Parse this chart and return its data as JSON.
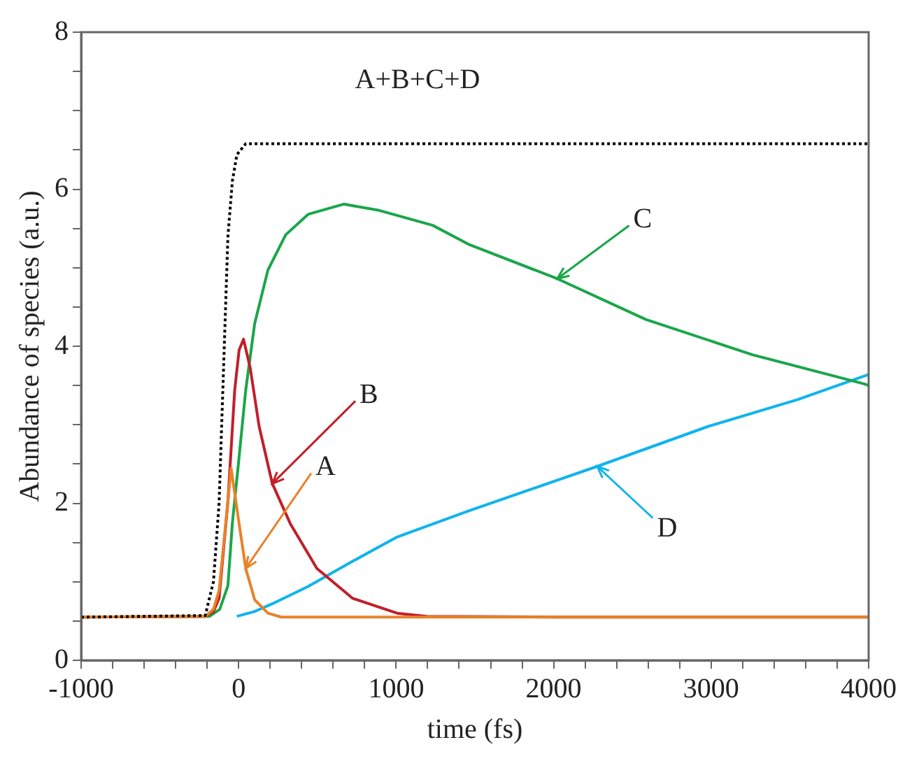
{
  "chart_data": {
    "type": "line",
    "xlabel": "time (fs)",
    "ylabel": "Abundance of species (a.u.)",
    "xlim": [
      -1000,
      4000
    ],
    "ylim": [
      0,
      8
    ],
    "xticks": [
      -1000,
      {
        "value": -800,
        "label": null
      },
      {
        "value": -600,
        "label": null
      },
      {
        "value": -400,
        "label": null
      },
      {
        "value": -200,
        "label": null
      },
      0,
      {
        "value": 200,
        "label": null
      },
      {
        "value": 400,
        "label": null
      },
      {
        "value": 600,
        "label": null
      },
      {
        "value": 800,
        "label": null
      },
      1000,
      {
        "value": 1200,
        "label": null
      },
      {
        "value": 1400,
        "label": null
      },
      {
        "value": 1600,
        "label": null
      },
      {
        "value": 1800,
        "label": null
      },
      2000,
      {
        "value": 2200,
        "label": null
      },
      {
        "value": 2400,
        "label": null
      },
      {
        "value": 2600,
        "label": null
      },
      {
        "value": 2800,
        "label": null
      },
      3000,
      {
        "value": 3200,
        "label": null
      },
      {
        "value": 3400,
        "label": null
      },
      {
        "value": 3600,
        "label": null
      },
      {
        "value": 3800,
        "label": null
      },
      4000
    ],
    "yticks": [
      0,
      {
        "value": 0.5,
        "label": null
      },
      {
        "value": 1,
        "label": null
      },
      {
        "value": 1.5,
        "label": null
      },
      2,
      {
        "value": 2.5,
        "label": null
      },
      {
        "value": 3,
        "label": null
      },
      {
        "value": 3.5,
        "label": null
      },
      4,
      {
        "value": 4.5,
        "label": null
      },
      {
        "value": 5,
        "label": null
      },
      {
        "value": 5.5,
        "label": null
      },
      6,
      {
        "value": 6.5,
        "label": null
      },
      {
        "value": 7,
        "label": null
      },
      {
        "value": 7.5,
        "label": null
      },
      8
    ],
    "grid": false,
    "legend": false,
    "marker": "none",
    "series": [
      {
        "color": "#000000",
        "line_style": "dotted",
        "x": [
          -1000,
          -212,
          -160,
          -124,
          -96,
          -68,
          -40,
          -11,
          45,
          200,
          1000,
          2000,
          3000,
          4000
        ],
        "values": [
          0.55,
          0.57,
          1.0,
          2.0,
          3.7,
          5.4,
          6.1,
          6.44,
          6.58,
          6.58,
          6.58,
          6.58,
          6.58,
          6.58
        ]
      },
      {
        "color": "#e8822a",
        "x": [
          -1000,
          -212,
          -160,
          -124,
          -82,
          -48,
          3,
          45,
          102,
          186,
          271,
          1000,
          2000,
          3000,
          4000
        ],
        "values": [
          0.55,
          0.56,
          0.65,
          0.89,
          1.74,
          2.45,
          1.74,
          1.17,
          0.77,
          0.6,
          0.55,
          0.55,
          0.55,
          0.55,
          0.55
        ]
      },
      {
        "color": "#c0202a",
        "x": [
          -1000,
          -212,
          -160,
          -124,
          -68,
          -25,
          3,
          31,
          74,
          130,
          214,
          328,
          497,
          723,
          1006,
          1195,
          2000,
          4000
        ],
        "values": [
          0.55,
          0.56,
          0.62,
          0.79,
          2.02,
          3.44,
          3.95,
          4.09,
          3.72,
          2.98,
          2.25,
          1.74,
          1.17,
          0.79,
          0.6,
          0.56,
          0.55,
          0.55
        ]
      },
      {
        "color": "#1aa64a",
        "x": [
          -1000,
          -184,
          -120,
          -68,
          -40,
          3,
          45,
          102,
          186,
          299,
          441,
          667,
          893,
          1232,
          1458,
          2023,
          2587,
          3265,
          3972,
          4000
        ],
        "values": [
          0.55,
          0.56,
          0.65,
          0.95,
          1.74,
          2.59,
          3.44,
          4.29,
          4.97,
          5.42,
          5.68,
          5.81,
          5.73,
          5.54,
          5.3,
          4.86,
          4.34,
          3.89,
          3.52,
          3.5
        ]
      },
      {
        "color": "#10b4ec",
        "x": [
          -11,
          100,
          214,
          441,
          723,
          1006,
          1458,
          2277,
          2983,
          3548,
          3972,
          4000
        ],
        "values": [
          0.56,
          0.62,
          0.72,
          0.94,
          1.26,
          1.57,
          1.9,
          2.47,
          2.98,
          3.32,
          3.62,
          3.64
        ]
      }
    ],
    "annotations": [
      {
        "text": "A+B+C+D",
        "x": 1136,
        "y": 6.58
      },
      {
        "text": "A",
        "x": 45,
        "y": 1.17
      },
      {
        "text": "B",
        "x": 214,
        "y": 2.25
      },
      {
        "text": "C",
        "x": 2023,
        "y": 4.86
      },
      {
        "text": "D",
        "x": 2277,
        "y": 2.47
      }
    ]
  }
}
